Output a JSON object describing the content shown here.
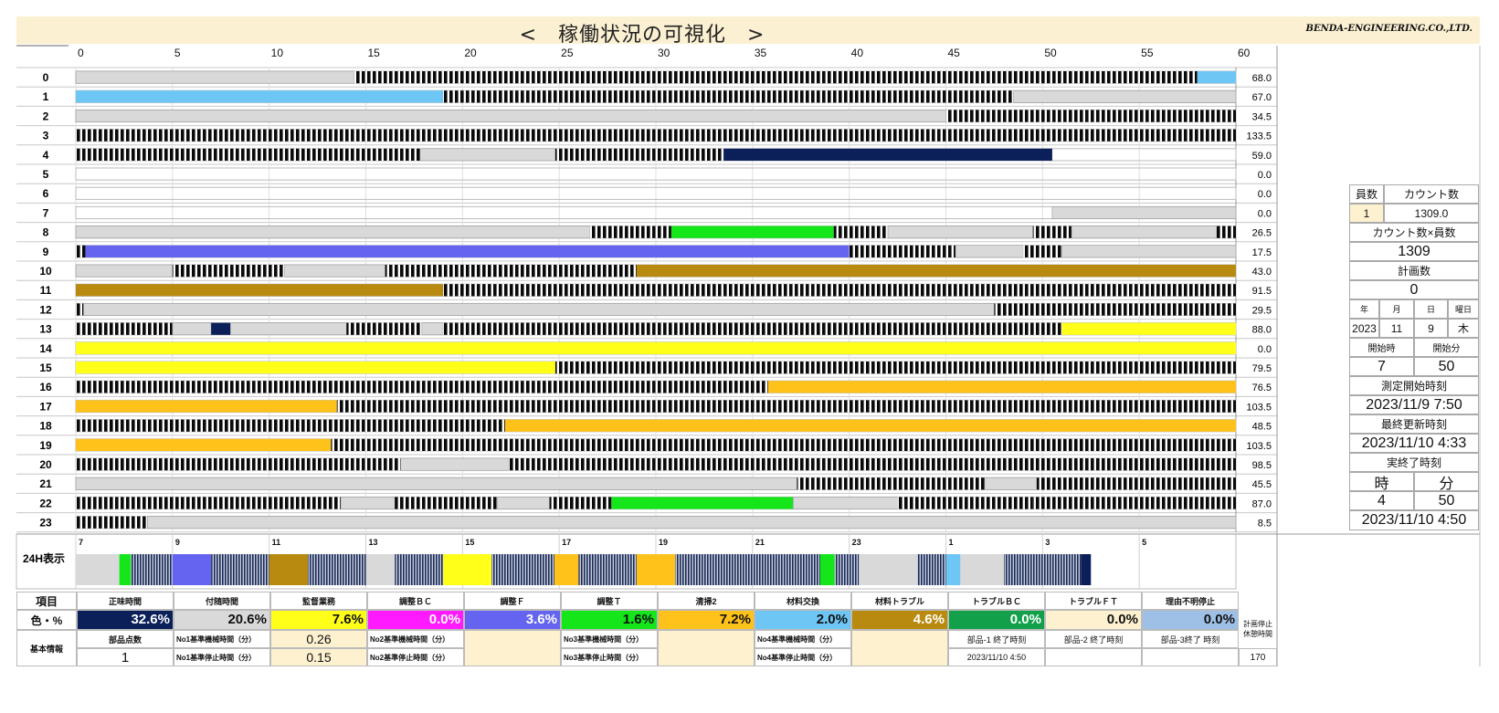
{
  "title": "<　稼働状況の可視化　>",
  "company": "BENDA-ENGINEERING.CO.,LTD.",
  "colors": {
    "idle": "#d9d9d9",
    "stripe_dark": "#0a0a0a",
    "stripe_light": "#ffffff",
    "navy": "#0b1f59",
    "cyan": "#6ec6f5",
    "green": "#14e61a",
    "violet": "#6464f0",
    "olive": "#b88a10",
    "yellow": "#ffff1a",
    "orange": "#ffc21a",
    "panel_highlight": "#fdf1cf"
  },
  "axis_ticks": [
    "0",
    "5",
    "10",
    "15",
    "20",
    "25",
    "30",
    "35",
    "40",
    "45",
    "50",
    "55",
    "60"
  ],
  "rows": [
    {
      "label": "0",
      "value": "68.0",
      "segs": [
        [
          "idle",
          0,
          14.4
        ],
        [
          "stripe",
          14.4,
          58
        ],
        [
          "cyan",
          58,
          60
        ]
      ]
    },
    {
      "label": "1",
      "value": "67.0",
      "segs": [
        [
          "cyan",
          0,
          19
        ],
        [
          "stripe",
          19,
          48.5
        ],
        [
          "idle",
          48.5,
          60
        ]
      ]
    },
    {
      "label": "2",
      "value": "34.5",
      "segs": [
        [
          "idle",
          0,
          45
        ],
        [
          "stripe",
          45,
          60
        ]
      ]
    },
    {
      "label": "3",
      "value": "133.5",
      "segs": [
        [
          "stripe",
          0,
          60
        ]
      ]
    },
    {
      "label": "4",
      "value": "59.0",
      "segs": [
        [
          "stripe",
          0,
          17.8
        ],
        [
          "idle",
          17.8,
          24.8
        ],
        [
          "stripe",
          24.8,
          33.5
        ],
        [
          "navy",
          33.5,
          50.5
        ]
      ]
    },
    {
      "label": "5",
      "value": "0.0",
      "segs": []
    },
    {
      "label": "6",
      "value": "0.0",
      "segs": []
    },
    {
      "label": "7",
      "value": "0.0",
      "segs": [
        [
          "idle",
          50.5,
          60
        ]
      ]
    },
    {
      "label": "8",
      "value": "26.5",
      "segs": [
        [
          "idle",
          0,
          26.6
        ],
        [
          "stripe",
          26.6,
          30.8
        ],
        [
          "green",
          30.8,
          39.2
        ],
        [
          "stripe",
          39.2,
          42
        ],
        [
          "idle",
          42,
          49.5
        ],
        [
          "stripe",
          49.5,
          51.5
        ],
        [
          "idle",
          51.5,
          59
        ],
        [
          "stripe",
          59,
          60
        ]
      ]
    },
    {
      "label": "9",
      "value": "17.5",
      "segs": [
        [
          "stripe",
          0,
          0.5
        ],
        [
          "violet",
          0.5,
          40
        ],
        [
          "stripe",
          40,
          45.5
        ],
        [
          "idle",
          45.5,
          49
        ],
        [
          "stripe",
          49,
          51
        ],
        [
          "idle",
          51,
          60
        ]
      ]
    },
    {
      "label": "10",
      "value": "43.0",
      "segs": [
        [
          "idle",
          0,
          5
        ],
        [
          "stripe",
          5,
          10.8
        ],
        [
          "idle",
          10.8,
          16
        ],
        [
          "stripe",
          16,
          29
        ],
        [
          "olive",
          29,
          60
        ]
      ]
    },
    {
      "label": "11",
      "value": "91.5",
      "segs": [
        [
          "olive",
          0,
          19
        ],
        [
          "stripe",
          19,
          60
        ]
      ]
    },
    {
      "label": "12",
      "value": "29.5",
      "segs": [
        [
          "stripe",
          0,
          0.4
        ],
        [
          "idle",
          0.4,
          47.5
        ],
        [
          "stripe",
          47.5,
          60
        ]
      ]
    },
    {
      "label": "13",
      "value": "88.0",
      "segs": [
        [
          "stripe",
          0,
          5
        ],
        [
          "idle",
          5,
          7
        ],
        [
          "navy",
          7,
          8
        ],
        [
          "idle",
          8,
          14
        ],
        [
          "stripe",
          14,
          17.9
        ],
        [
          "idle",
          17.9,
          19
        ],
        [
          "stripe",
          19,
          51
        ],
        [
          "yellow",
          51,
          60
        ]
      ]
    },
    {
      "label": "14",
      "value": "0.0",
      "segs": [
        [
          "yellow",
          0,
          60
        ]
      ]
    },
    {
      "label": "15",
      "value": "79.5",
      "segs": [
        [
          "yellow",
          0,
          24.8
        ],
        [
          "stripe",
          24.8,
          60
        ]
      ]
    },
    {
      "label": "16",
      "value": "76.5",
      "segs": [
        [
          "stripe",
          0,
          35.8
        ],
        [
          "orange",
          35.8,
          60
        ]
      ]
    },
    {
      "label": "17",
      "value": "103.5",
      "segs": [
        [
          "orange",
          0,
          13.5
        ],
        [
          "stripe",
          13.5,
          60
        ]
      ]
    },
    {
      "label": "18",
      "value": "48.5",
      "segs": [
        [
          "stripe",
          0,
          22.2
        ],
        [
          "orange",
          22.2,
          60
        ]
      ]
    },
    {
      "label": "19",
      "value": "103.5",
      "segs": [
        [
          "orange",
          0,
          13.2
        ],
        [
          "stripe",
          13.2,
          60
        ]
      ]
    },
    {
      "label": "20",
      "value": "98.5",
      "segs": [
        [
          "stripe",
          0,
          16.8
        ],
        [
          "idle",
          16.8,
          22.4
        ],
        [
          "stripe",
          22.4,
          60
        ]
      ]
    },
    {
      "label": "21",
      "value": "45.5",
      "segs": [
        [
          "idle",
          0,
          37.3
        ],
        [
          "stripe",
          37.3,
          47
        ],
        [
          "idle",
          47,
          49.7
        ],
        [
          "stripe",
          49.7,
          60
        ]
      ]
    },
    {
      "label": "22",
      "value": "87.0",
      "segs": [
        [
          "stripe",
          0,
          13.7
        ],
        [
          "idle",
          13.7,
          16.5
        ],
        [
          "stripe",
          16.5,
          21.8
        ],
        [
          "idle",
          21.8,
          24.5
        ],
        [
          "stripe",
          24.5,
          27.7
        ],
        [
          "green",
          27.7,
          37.1
        ],
        [
          "idle",
          37.1,
          42.5
        ],
        [
          "stripe",
          42.5,
          49.5
        ],
        [
          "stripe",
          49.5,
          60
        ]
      ]
    },
    {
      "label": "23",
      "value": "8.5",
      "segs": [
        [
          "stripe",
          0,
          3.7
        ],
        [
          "idle",
          3.7,
          60
        ]
      ]
    }
  ],
  "h24": {
    "label": "24H表示",
    "ticks": [
      "7",
      "9",
      "11",
      "13",
      "15",
      "17",
      "19",
      "21",
      "23",
      "1",
      "3",
      "5"
    ],
    "segs": [
      [
        "idle",
        0,
        0.45
      ],
      [
        "green",
        0.45,
        0.57
      ],
      [
        "stripe",
        0.57,
        1
      ],
      [
        "violet",
        1,
        1.4
      ],
      [
        "stripe",
        1.4,
        2
      ],
      [
        "olive",
        2,
        2.4
      ],
      [
        "stripe",
        2.4,
        3
      ],
      [
        "idle",
        3,
        3.3
      ],
      [
        "stripe",
        3.3,
        3.8
      ],
      [
        "yellow",
        3.8,
        4.3
      ],
      [
        "stripe",
        4.3,
        4.95
      ],
      [
        "orange",
        4.95,
        5.2
      ],
      [
        "stripe",
        5.2,
        5.8
      ],
      [
        "orange",
        5.8,
        6.2
      ],
      [
        "stripe",
        6.2,
        7.2
      ],
      [
        "stripe",
        7.2,
        7.7
      ],
      [
        "green",
        7.7,
        7.85
      ],
      [
        "stripe",
        7.85,
        8.1
      ],
      [
        "idle",
        8.1,
        8.7
      ],
      [
        "stripe",
        8.7,
        9
      ],
      [
        "cyan",
        9,
        9.15
      ],
      [
        "idle",
        9.15,
        9.6
      ],
      [
        "stripe",
        9.6,
        10.4
      ],
      [
        "navy",
        10.4,
        10.5
      ]
    ]
  },
  "legend": {
    "header_label": "項目",
    "color_label": "色・%",
    "items": [
      {
        "name": "正味時間",
        "pct": "32.6%",
        "color": "#0b1f59",
        "text": "#ffffff"
      },
      {
        "name": "付随時間",
        "pct": "20.6%",
        "color": "#d9d9d9",
        "text": "#111111"
      },
      {
        "name": "監督業務",
        "pct": "7.6%",
        "color": "#ffff1a",
        "text": "#111111"
      },
      {
        "name": "調整ＢＣ",
        "pct": "0.0%",
        "color": "#ff1aff",
        "text": "#ffffff"
      },
      {
        "name": "調整Ｆ",
        "pct": "3.6%",
        "color": "#6464f0",
        "text": "#ffffff"
      },
      {
        "name": "調整Ｔ",
        "pct": "1.6%",
        "color": "#14e61a",
        "text": "#111111"
      },
      {
        "name": "清掃2",
        "pct": "7.2%",
        "color": "#ffc21a",
        "text": "#111111"
      },
      {
        "name": "材料交換",
        "pct": "2.0%",
        "color": "#6ec6f5",
        "text": "#111111"
      },
      {
        "name": "材料トラブル",
        "pct": "4.6%",
        "color": "#b88a10",
        "text": "#ffffff"
      },
      {
        "name": "トラブルＢＣ",
        "pct": "0.0%",
        "color": "#12a14a",
        "text": "#ffffff"
      },
      {
        "name": "トラブルＦＴ",
        "pct": "0.0%",
        "color": "#fdf1cf",
        "text": "#111111"
      },
      {
        "name": "理由不明停止",
        "pct": "0.0%",
        "color": "#9ec0e6",
        "text": "#111111"
      }
    ]
  },
  "basic": {
    "label": "基本情報",
    "parts_count_label": "部品点数",
    "parts_count": "1",
    "no1_machine_label": "No1基準機械時間（分）",
    "no1_machine": "0.26",
    "no1_stop_label": "No1基準停止時間（分）",
    "no1_stop": "0.15",
    "no2_machine_label": "No2基準機械時間（分）",
    "no2_stop_label": "No2基準停止時間（分）",
    "no3_machine_label": "No3基準機械時間（分）",
    "no3_stop_label": "No3基準停止時間（分）",
    "no4_machine_label": "No4基準機械時間（分）",
    "no4_stop_label": "No4基準停止時間（分）",
    "part1_end_label": "部品-1 終了時刻",
    "part1_end": "2023/11/10 4:50",
    "part2_end_label": "部品-2 終了時刻",
    "part3_end_label": "部品-3終了 時刻",
    "planned_stop_label": "計画停止\n休憩時間",
    "planned_stop": "170"
  },
  "panel": {
    "staff_label": "員数",
    "count_label": "カウント数",
    "staff": "1",
    "count": "1309.0",
    "count_x_staff_label": "カウント数×員数",
    "count_x_staff": "1309",
    "plan_label": "計画数",
    "plan": "0",
    "year_label": "年",
    "month_label": "月",
    "day_label": "日",
    "weekday_label": "曜日",
    "year": "2023",
    "month": "11",
    "day": "9",
    "weekday": "木",
    "start_hour_label": "開始時",
    "start_min_label": "開始分",
    "start_hour": "7",
    "start_min": "50",
    "measure_start_label": "測定開始時刻",
    "measure_start": "2023/11/9 7:50",
    "last_update_label": "最終更新時刻",
    "last_update": "2023/11/10 4:33",
    "actual_end_label": "実終了時刻",
    "hour_label": "時",
    "minute_label": "分",
    "end_hour": "4",
    "end_min": "50",
    "actual_end": "2023/11/10 4:50"
  }
}
